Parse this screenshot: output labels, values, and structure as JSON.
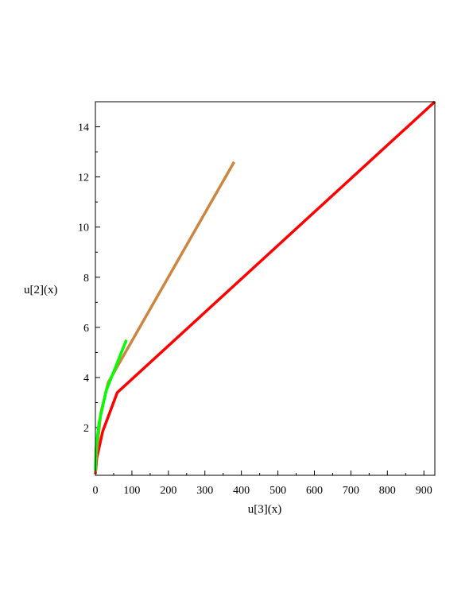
{
  "chart_data": {
    "type": "line",
    "title": "",
    "xlabel": "u[3](x)",
    "ylabel": "u[2](x)",
    "xlim": [
      0,
      930
    ],
    "ylim": [
      0.1,
      15
    ],
    "x_ticks": [
      0,
      100,
      200,
      300,
      400,
      500,
      600,
      700,
      800,
      900
    ],
    "y_ticks": [
      2,
      4,
      6,
      8,
      10,
      12,
      14
    ],
    "grid": false,
    "legend": "none",
    "series": [
      {
        "color": "#ff0000",
        "points": [
          [
            0,
            0.15
          ],
          [
            4,
            0.8
          ],
          [
            20,
            1.85
          ],
          [
            60,
            3.4
          ],
          [
            930,
            15
          ]
        ]
      },
      {
        "color": "#cd853f",
        "points": [
          [
            0,
            0.2
          ],
          [
            3,
            1.0
          ],
          [
            15,
            2.6
          ],
          [
            35,
            3.8
          ],
          [
            380,
            12.6
          ]
        ]
      },
      {
        "color": "#00ff00",
        "points": [
          [
            0,
            0.3
          ],
          [
            2,
            1.2
          ],
          [
            10,
            2.2
          ],
          [
            30,
            3.5
          ],
          [
            85,
            5.5
          ]
        ]
      }
    ]
  }
}
